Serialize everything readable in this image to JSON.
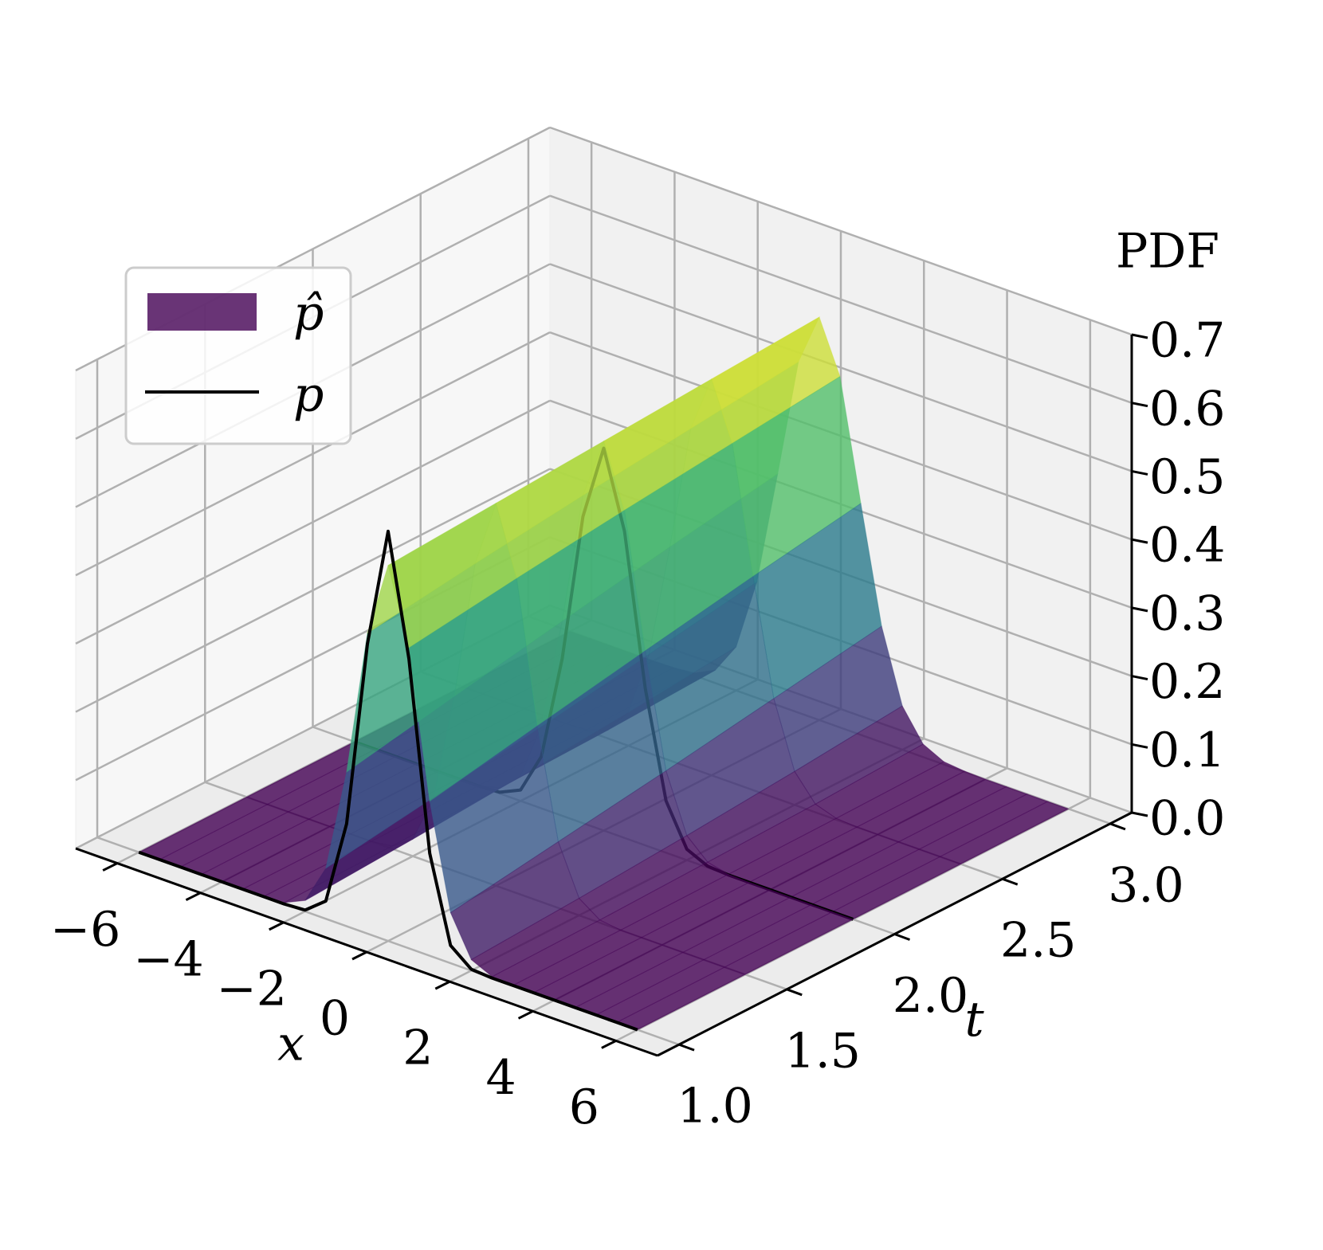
{
  "chart_data": {
    "type": "surface3d",
    "xlabel": "x",
    "ylabel": "t",
    "zlabel": "PDF",
    "x": [
      -6,
      -5.5,
      -5,
      -4.5,
      -4,
      -3.5,
      -3,
      -2.5,
      -2,
      -1.5,
      -1,
      -0.5,
      0,
      0.5,
      1,
      1.5,
      2,
      2.5,
      3,
      3.5,
      4,
      4.5,
      5,
      5.5,
      6
    ],
    "t": [
      1,
      1.5,
      2,
      2.5,
      3
    ],
    "surface": {
      "name": "p̂",
      "colormap": "viridis",
      "alpha": 0.8,
      "z": [
        [
          0,
          0,
          0,
          0,
          0,
          0,
          0,
          0.002,
          0.016,
          0.074,
          0.226,
          0.44,
          0.55,
          0.44,
          0.226,
          0.074,
          0.016,
          0.002,
          0,
          0,
          0,
          0,
          0,
          0,
          0
        ],
        [
          0,
          0,
          0,
          0,
          0,
          0,
          0,
          0.004,
          0.025,
          0.097,
          0.256,
          0.461,
          0.56,
          0.461,
          0.256,
          0.097,
          0.025,
          0.004,
          0,
          0,
          0,
          0,
          0,
          0,
          0
        ],
        [
          0,
          0,
          0,
          0,
          0,
          0,
          0.001,
          0.008,
          0.036,
          0.12,
          0.285,
          0.48,
          0.57,
          0.48,
          0.285,
          0.12,
          0.036,
          0.008,
          0.001,
          0,
          0,
          0,
          0,
          0,
          0
        ],
        [
          0,
          0,
          0,
          0,
          0,
          0,
          0.002,
          0.012,
          0.049,
          0.145,
          0.313,
          0.497,
          0.58,
          0.497,
          0.313,
          0.145,
          0.049,
          0.012,
          0.002,
          0,
          0,
          0,
          0,
          0,
          0
        ],
        [
          0,
          0,
          0,
          0,
          0,
          0.001,
          0.004,
          0.019,
          0.064,
          0.17,
          0.339,
          0.514,
          0.59,
          0.514,
          0.339,
          0.17,
          0.064,
          0.019,
          0.004,
          0.001,
          0,
          0,
          0,
          0,
          0
        ]
      ]
    },
    "lines": [
      {
        "name": "p",
        "color": "#000000",
        "t": 1,
        "values": [
          0,
          0,
          0,
          0,
          0,
          0,
          0,
          0,
          0.002,
          0.026,
          0.15,
          0.424,
          0.6,
          0.424,
          0.15,
          0.026,
          0.002,
          0,
          0,
          0,
          0,
          0,
          0,
          0,
          0
        ]
      },
      {
        "color": "#000000",
        "t": 2,
        "values": [
          0,
          0,
          0,
          0,
          0,
          0,
          0,
          0.002,
          0.016,
          0.076,
          0.23,
          0.449,
          0.56,
          0.449,
          0.23,
          0.076,
          0.016,
          0.002,
          0,
          0,
          0,
          0,
          0,
          0,
          0
        ]
      }
    ],
    "xlim": [
      -7,
      7
    ],
    "ylim": [
      0.9,
      3.1
    ],
    "zlim": [
      0,
      0.7
    ],
    "xticks": [
      {
        "value": -6,
        "label": "−6"
      },
      {
        "value": -4,
        "label": "−4"
      },
      {
        "value": -2,
        "label": "−2"
      },
      0,
      2,
      4,
      6
    ],
    "yticks": [
      {
        "value": 1,
        "label": "1.0"
      },
      1.5,
      {
        "value": 2,
        "label": "2.0"
      },
      2.5,
      {
        "value": 3,
        "label": "3.0"
      }
    ],
    "zticks": [
      {
        "value": 0,
        "label": "0.0"
      },
      0.1,
      0.2,
      0.3,
      0.4,
      0.5,
      0.6,
      0.7
    ],
    "grid": true,
    "legend": "upper left"
  }
}
